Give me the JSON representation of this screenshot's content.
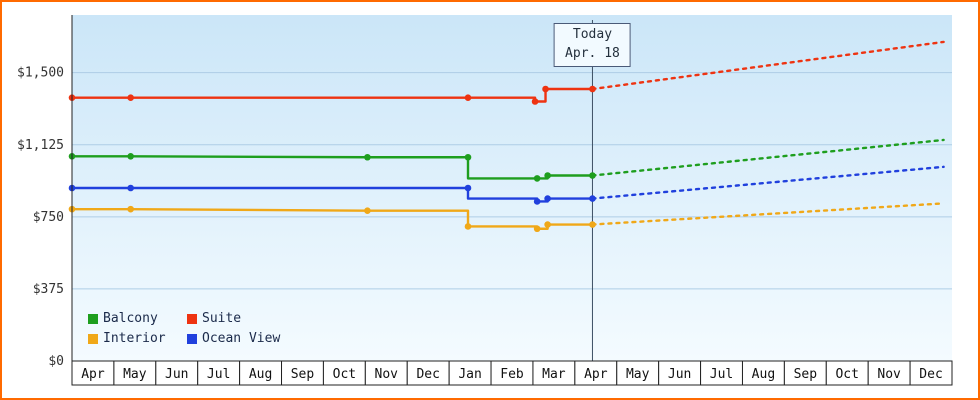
{
  "chart_data": {
    "type": "line",
    "title": "",
    "x_months": [
      "Apr",
      "May",
      "Jun",
      "Jul",
      "Aug",
      "Sep",
      "Oct",
      "Nov",
      "Dec",
      "Jan",
      "Feb",
      "Mar",
      "Apr",
      "May",
      "Jun",
      "Jul",
      "Aug",
      "Sep",
      "Oct",
      "Nov",
      "Dec"
    ],
    "y_ticks": [
      {
        "value": 0,
        "label": "$0"
      },
      {
        "value": 375,
        "label": "$375"
      },
      {
        "value": 750,
        "label": "$750"
      },
      {
        "value": 1125,
        "label": "$1,125"
      },
      {
        "value": 1500,
        "label": "$1,500"
      }
    ],
    "ylim": [
      0,
      1800
    ],
    "today": {
      "label": "Today",
      "date": "Apr. 18",
      "x": 12.42
    },
    "series": [
      {
        "name": "Balcony",
        "color": "#1e9e1e",
        "history": [
          [
            0,
            1065
          ],
          [
            1.4,
            1065
          ],
          [
            7.05,
            1060
          ],
          [
            9.45,
            1060
          ],
          [
            9.45,
            950
          ],
          [
            11.1,
            950
          ],
          [
            11.35,
            950
          ],
          [
            11.35,
            965
          ],
          [
            12.42,
            965
          ]
        ],
        "markers": [
          [
            0,
            1065
          ],
          [
            1.4,
            1065
          ],
          [
            7.05,
            1060
          ],
          [
            9.45,
            1060
          ],
          [
            11.1,
            950
          ],
          [
            11.35,
            965
          ],
          [
            12.42,
            965
          ]
        ],
        "forecast": [
          [
            12.42,
            965
          ],
          [
            20.8,
            1150
          ]
        ]
      },
      {
        "name": "Suite",
        "color": "#ee3311",
        "history": [
          [
            0,
            1370
          ],
          [
            1.4,
            1370
          ],
          [
            9.45,
            1370
          ],
          [
            11.05,
            1370
          ],
          [
            11.05,
            1350
          ],
          [
            11.3,
            1350
          ],
          [
            11.3,
            1415
          ],
          [
            12.42,
            1415
          ]
        ],
        "markers": [
          [
            0,
            1370
          ],
          [
            1.4,
            1370
          ],
          [
            9.45,
            1370
          ],
          [
            11.05,
            1350
          ],
          [
            11.3,
            1415
          ],
          [
            12.42,
            1415
          ]
        ],
        "forecast": [
          [
            12.42,
            1415
          ],
          [
            20.8,
            1660
          ]
        ]
      },
      {
        "name": "Interior",
        "color": "#f0a818",
        "history": [
          [
            0,
            790
          ],
          [
            1.4,
            790
          ],
          [
            7.05,
            782
          ],
          [
            9.45,
            782
          ],
          [
            9.45,
            700
          ],
          [
            11.1,
            700
          ],
          [
            11.1,
            688
          ],
          [
            11.35,
            688
          ],
          [
            11.35,
            710
          ],
          [
            12.42,
            710
          ]
        ],
        "markers": [
          [
            0,
            790
          ],
          [
            1.4,
            790
          ],
          [
            7.05,
            782
          ],
          [
            9.45,
            700
          ],
          [
            11.1,
            688
          ],
          [
            11.35,
            710
          ],
          [
            12.42,
            710
          ]
        ],
        "forecast": [
          [
            12.42,
            710
          ],
          [
            20.8,
            820
          ]
        ]
      },
      {
        "name": "Ocean View",
        "color": "#2040dd",
        "history": [
          [
            0,
            900
          ],
          [
            1.4,
            900
          ],
          [
            9.45,
            900
          ],
          [
            9.45,
            845
          ],
          [
            11.1,
            845
          ],
          [
            11.1,
            830
          ],
          [
            11.35,
            830
          ],
          [
            11.35,
            845
          ],
          [
            12.42,
            845
          ]
        ],
        "markers": [
          [
            0,
            900
          ],
          [
            1.4,
            900
          ],
          [
            9.45,
            900
          ],
          [
            11.1,
            830
          ],
          [
            11.35,
            845
          ],
          [
            12.42,
            845
          ]
        ],
        "forecast": [
          [
            12.42,
            845
          ],
          [
            20.8,
            1010
          ]
        ]
      }
    ],
    "colors": {
      "frame_border": "#ff6a00",
      "plot_bg_top": "#cbe6f8",
      "plot_bg_bottom": "#f4fbff",
      "grid": "#aecde6",
      "axis": "#222222",
      "tick_text": "#333333",
      "month_text": "#111111",
      "today_line": "#3d4f63",
      "legend_text": "#1b2a4a"
    }
  }
}
